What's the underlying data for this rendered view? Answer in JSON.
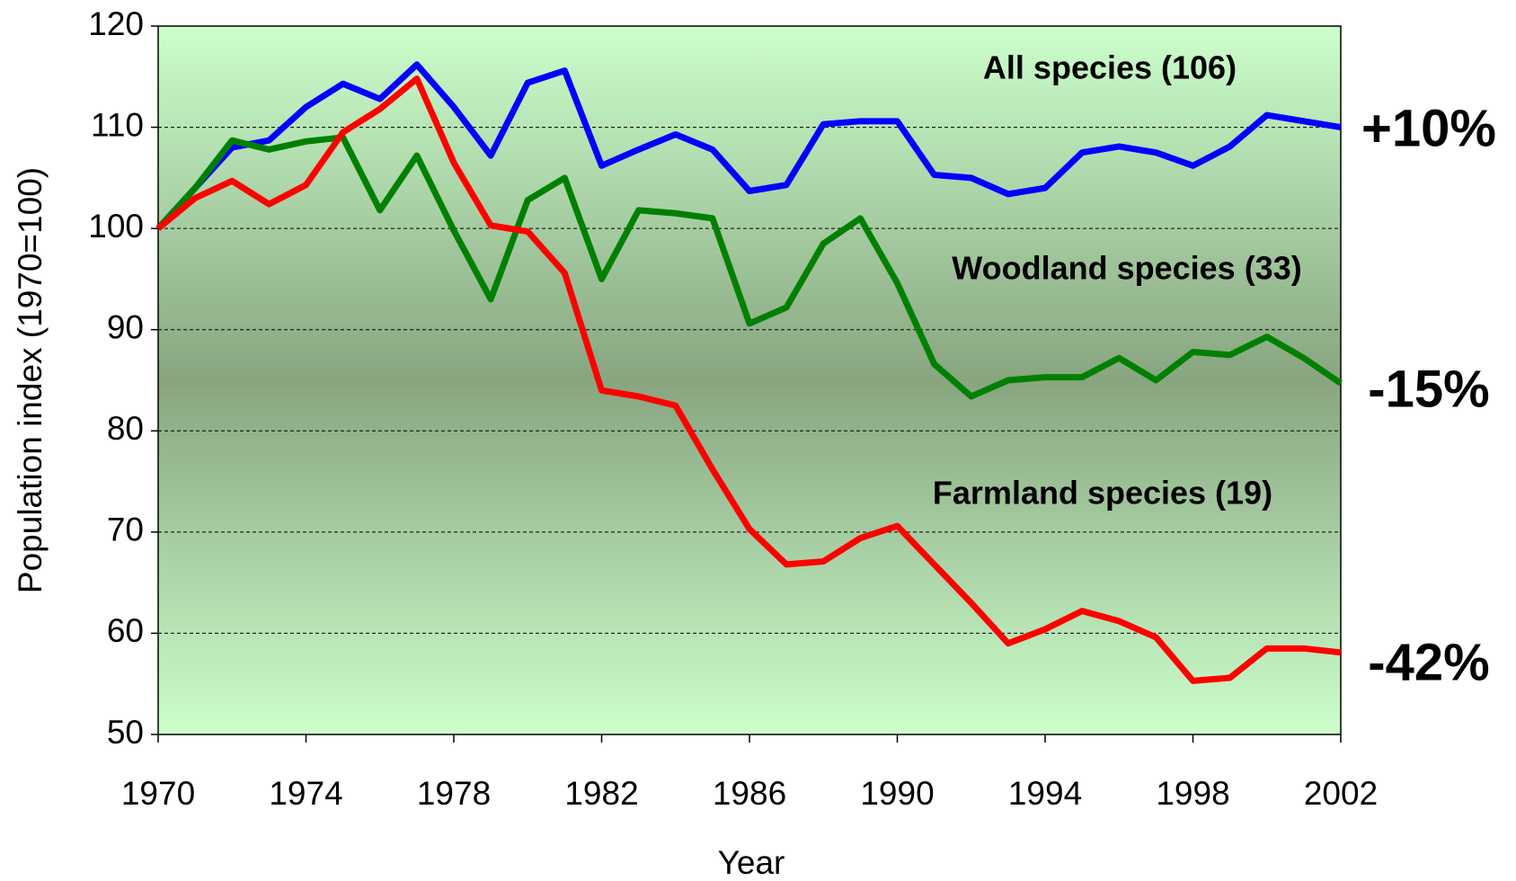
{
  "chart_data": {
    "type": "line",
    "x": [
      1970,
      1971,
      1972,
      1973,
      1974,
      1975,
      1976,
      1977,
      1978,
      1979,
      1980,
      1981,
      1982,
      1983,
      1984,
      1985,
      1986,
      1987,
      1988,
      1989,
      1990,
      1991,
      1992,
      1993,
      1994,
      1995,
      1996,
      1997,
      1998,
      1999,
      2000,
      2001,
      2002
    ],
    "x_label": "Year",
    "y_label": "Population index  (1970=100)",
    "xlim": [
      1970,
      2002
    ],
    "xticks": [
      1970,
      1974,
      1978,
      1982,
      1986,
      1990,
      1994,
      1998,
      2002
    ],
    "ylim": [
      50,
      120
    ],
    "yticks": [
      50,
      60,
      70,
      80,
      90,
      100,
      110,
      120
    ],
    "grid": true,
    "series": [
      {
        "name": "All species (106)",
        "change": "+10%",
        "color": "#0000ff",
        "values": [
          100,
          104,
          108,
          108.7,
          112,
          114.3,
          112.8,
          116.2,
          112,
          107.2,
          114.4,
          115.6,
          106.2,
          107.8,
          109.3,
          107.8,
          103.7,
          104.3,
          110.3,
          110.6,
          110.6,
          105.3,
          105,
          103.4,
          104,
          107.5,
          108.1,
          107.5,
          106.2,
          108.1,
          111.2,
          110.6,
          110
        ]
      },
      {
        "name": "Woodland species (33)",
        "change": "-15%",
        "color": "#008000",
        "values": [
          100,
          104,
          108.7,
          107.8,
          108.6,
          109,
          101.8,
          107.2,
          99.8,
          93,
          102.8,
          105,
          95,
          101.8,
          101.5,
          101,
          90.6,
          92.2,
          98.5,
          101,
          94.6,
          86.6,
          83.4,
          85,
          85.3,
          85.3,
          87.2,
          85,
          87.8,
          87.5,
          89.3,
          87.2,
          84.7
        ]
      },
      {
        "name": "Farmland species (19)",
        "change": "-42%",
        "color": "#ff0000",
        "values": [
          100,
          103,
          104.7,
          102.4,
          104.3,
          109.5,
          111.8,
          114.8,
          106.5,
          100.3,
          99.7,
          95.6,
          84,
          83.4,
          82.5,
          76.2,
          70.3,
          66.8,
          67.1,
          69.4,
          70.6,
          66.8,
          63,
          59,
          60.4,
          62.2,
          61.2,
          59.6,
          55.3,
          55.6,
          58.5,
          58.5,
          58.1
        ]
      }
    ]
  }
}
